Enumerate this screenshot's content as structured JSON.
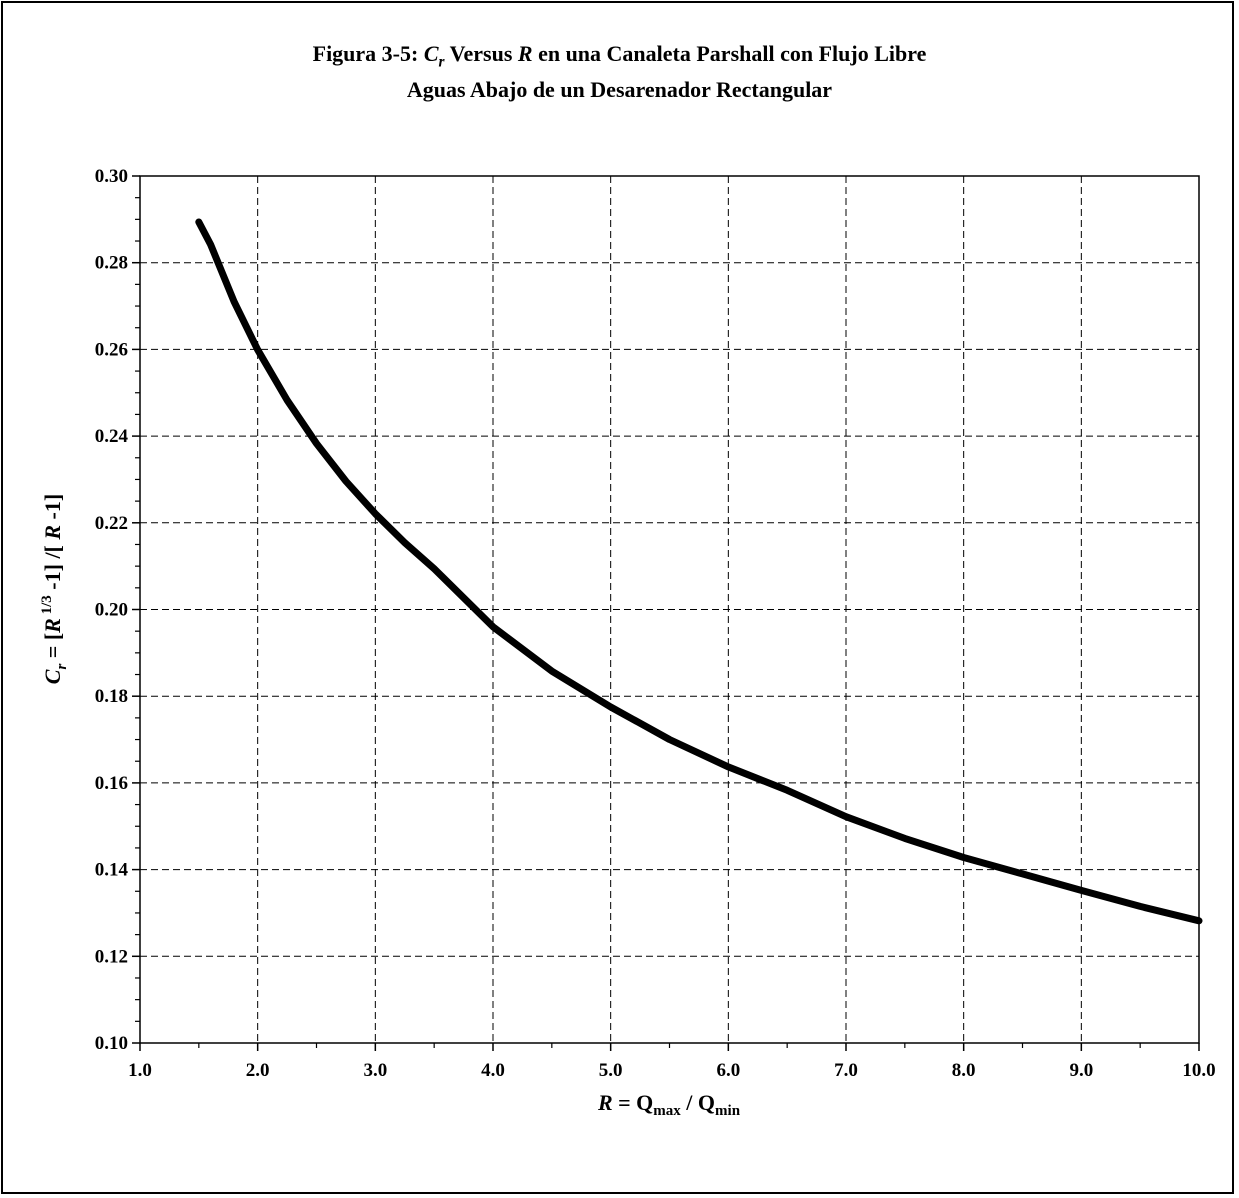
{
  "title": {
    "prefix": "Figura 3-5: ",
    "symbol_main": "C",
    "symbol_sub": "r",
    "versus": " Versus ",
    "symbol_R": "R",
    "rest": "  en una Canaleta Parshall con Flujo Libre",
    "line2": "Aguas Abajo de un Desarenador Rectangular"
  },
  "y_axis": {
    "label_C": "C",
    "label_sub": "r",
    "label_eq": " = [",
    "label_R1": "R",
    "label_exp": " 1/3",
    "label_mid": " -1] /[ ",
    "label_R2": "R",
    "label_end": " -1]"
  },
  "x_axis": {
    "label_R": "R",
    "label_eq": " = Q",
    "label_max": "max",
    "label_slash": " / Q",
    "label_min": "min"
  },
  "chart_data": {
    "type": "line",
    "title": "Figura 3-5: Cr Versus R en una Canaleta Parshall con Flujo Libre Aguas Abajo de un Desarenador Rectangular",
    "xlabel": "R = Qmax / Qmin",
    "ylabel": "Cr = [R 1/3 -1] /[ R -1]",
    "xlim": [
      1.0,
      10.0
    ],
    "ylim": [
      0.1,
      0.3
    ],
    "grid": true,
    "x_ticks": [
      "1.0",
      "2.0",
      "3.0",
      "4.0",
      "5.0",
      "6.0",
      "7.0",
      "8.0",
      "9.0",
      "10.0"
    ],
    "y_ticks": [
      "0.10",
      "0.12",
      "0.14",
      "0.16",
      "0.18",
      "0.20",
      "0.22",
      "0.24",
      "0.26",
      "0.28",
      "0.30"
    ],
    "series": [
      {
        "color": "#000000",
        "x": [
          1.5,
          1.6,
          1.8,
          2.0,
          2.25,
          2.5,
          2.75,
          3.0,
          3.25,
          3.5,
          4.0,
          4.5,
          5.0,
          5.5,
          6.0,
          6.5,
          7.0,
          7.5,
          8.0,
          8.5,
          9.0,
          9.5,
          10.0
        ],
        "y": [
          0.2894,
          0.2842,
          0.271,
          0.2599,
          0.2483,
          0.2383,
          0.2296,
          0.2221,
          0.2154,
          0.2094,
          0.196,
          0.1858,
          0.1775,
          0.17,
          0.1637,
          0.1583,
          0.1522,
          0.1472,
          0.1428,
          0.139,
          0.1352,
          0.1315,
          0.1282
        ]
      }
    ]
  }
}
